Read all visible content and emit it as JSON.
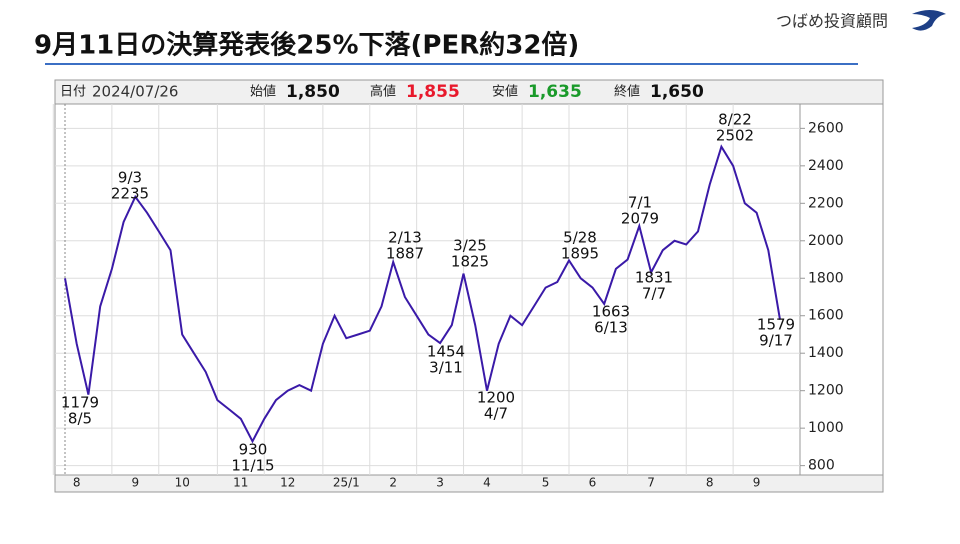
{
  "header": {
    "title": "9月11日の決算発表後25%下落(PER約32倍)",
    "logo": "つばめ投資顧問"
  },
  "chart_data": {
    "type": "line",
    "info": [
      {
        "label": "日付",
        "value": "2024/07/26"
      },
      {
        "label": "始値",
        "value": "1,850",
        "color": "#111111"
      },
      {
        "label": "高値",
        "value": "1,855",
        "color": "#e8192c"
      },
      {
        "label": "安値",
        "value": "1,635",
        "color": "#1a9a2a"
      },
      {
        "label": "終値",
        "value": "1,650",
        "color": "#111111"
      }
    ],
    "categories": [
      null,
      "8",
      null,
      null,
      null,
      null,
      "9",
      null,
      null,
      null,
      "10",
      null,
      null,
      null,
      null,
      "11",
      null,
      null,
      null,
      "12",
      null,
      null,
      null,
      null,
      "25/1",
      null,
      null,
      null,
      "2",
      null,
      null,
      null,
      "3",
      null,
      null,
      null,
      "4",
      null,
      null,
      null,
      null,
      "5",
      null,
      null,
      null,
      "6",
      null,
      null,
      null,
      null,
      "7",
      null,
      null,
      null,
      null,
      "8",
      null,
      null,
      null,
      "9",
      null,
      null
    ],
    "series": [
      {
        "color": "#3a1aa8",
        "values": [
          1800,
          1450,
          1179,
          1650,
          1850,
          2100,
          2235,
          2150,
          2050,
          1950,
          1500,
          1400,
          1300,
          1150,
          1100,
          1050,
          930,
          1050,
          1150,
          1200,
          1230,
          1200,
          1450,
          1600,
          1480,
          1500,
          1520,
          1650,
          1887,
          1700,
          1600,
          1500,
          1454,
          1550,
          1825,
          1550,
          1200,
          1450,
          1600,
          1550,
          1650,
          1750,
          1780,
          1895,
          1800,
          1750,
          1663,
          1850,
          1900,
          2079,
          1831,
          1950,
          2000,
          1980,
          2050,
          2300,
          2502,
          2400,
          2200,
          2150,
          1950,
          1579
        ]
      }
    ],
    "ylim": [
      750,
      2730
    ],
    "yticks": [
      800,
      1000,
      1200,
      1400,
      1600,
      1800,
      2000,
      2200,
      2400,
      2600
    ],
    "grid": true,
    "annotations": [
      [
        "1179",
        "8/5"
      ],
      [
        "9/3",
        "2235"
      ],
      [
        "930",
        "11/15"
      ],
      [
        "2/13",
        "1887"
      ],
      [
        "1454",
        "3/11"
      ],
      [
        "3/25",
        "1825"
      ],
      [
        "1200",
        "4/7"
      ],
      [
        "5/28",
        "1895"
      ],
      [
        "7/1",
        "2079"
      ],
      [
        "1663",
        "6/13"
      ],
      [
        "1831",
        "7/7"
      ],
      [
        "8/22",
        "2502"
      ],
      [
        "1579",
        "9/17"
      ]
    ]
  }
}
